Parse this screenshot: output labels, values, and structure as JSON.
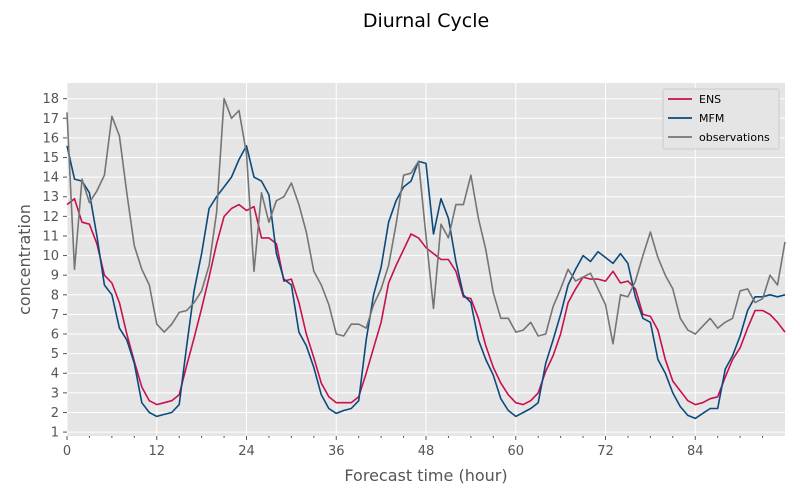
{
  "chart_data": {
    "type": "line",
    "title": "Diurnal Cycle",
    "xlabel": "Forecast time (hour)",
    "ylabel": "concentration",
    "xlim": [
      0,
      96
    ],
    "ylim": [
      0.8,
      18.8
    ],
    "xticks": [
      0,
      12,
      24,
      36,
      48,
      60,
      72,
      84
    ],
    "yticks": [
      1,
      2,
      3,
      4,
      5,
      6,
      7,
      8,
      9,
      10,
      11,
      12,
      13,
      14,
      15,
      16,
      17,
      18
    ],
    "grid": true,
    "legend_position": "top-right",
    "x": [
      0,
      1,
      2,
      3,
      4,
      5,
      6,
      7,
      8,
      9,
      10,
      11,
      12,
      13,
      14,
      15,
      16,
      17,
      18,
      19,
      20,
      21,
      22,
      23,
      24,
      25,
      26,
      27,
      28,
      29,
      30,
      31,
      32,
      33,
      34,
      35,
      36,
      37,
      38,
      39,
      40,
      41,
      42,
      43,
      44,
      45,
      46,
      47,
      48,
      49,
      50,
      51,
      52,
      53,
      54,
      55,
      56,
      57,
      58,
      59,
      60,
      61,
      62,
      63,
      64,
      65,
      66,
      67,
      68,
      69,
      70,
      71,
      72,
      73,
      74,
      75,
      76,
      77,
      78,
      79,
      80,
      81,
      82,
      83,
      84,
      85,
      86,
      87,
      88,
      89,
      90,
      91,
      92,
      93,
      94,
      95,
      96
    ],
    "series": [
      {
        "name": "ENS",
        "color": "#c8104f",
        "values": [
          12.6,
          12.9,
          11.7,
          11.6,
          10.6,
          9.0,
          8.6,
          7.6,
          6.0,
          4.6,
          3.3,
          2.6,
          2.4,
          2.5,
          2.6,
          2.9,
          4.4,
          5.8,
          7.3,
          8.9,
          10.6,
          12.0,
          12.4,
          12.6,
          12.3,
          12.5,
          10.9,
          10.9,
          10.6,
          8.7,
          8.8,
          7.6,
          6.0,
          4.8,
          3.5,
          2.8,
          2.5,
          2.5,
          2.5,
          2.8,
          4.0,
          5.3,
          6.6,
          8.6,
          9.5,
          10.3,
          11.1,
          10.9,
          10.4,
          10.1,
          9.8,
          9.8,
          9.2,
          7.9,
          7.8,
          6.8,
          5.4,
          4.3,
          3.5,
          2.9,
          2.5,
          2.4,
          2.6,
          3.0,
          4.1,
          4.9,
          6.0,
          7.6,
          8.3,
          8.9,
          8.8,
          8.8,
          8.7,
          9.2,
          8.6,
          8.7,
          8.3,
          7.0,
          6.9,
          6.2,
          4.7,
          3.6,
          3.1,
          2.6,
          2.4,
          2.5,
          2.7,
          2.8,
          3.8,
          4.7,
          5.3,
          6.3,
          7.2,
          7.2,
          7.0,
          6.6,
          6.1
        ]
      },
      {
        "name": "MFM",
        "color": "#0b4a7d",
        "values": [
          15.6,
          13.9,
          13.8,
          13.2,
          11.0,
          8.5,
          8.0,
          6.3,
          5.7,
          4.5,
          2.5,
          2.0,
          1.8,
          1.9,
          2.0,
          2.4,
          5.4,
          8.2,
          10.1,
          12.4,
          13.0,
          13.5,
          14.0,
          14.9,
          15.6,
          14.0,
          13.8,
          13.1,
          10.1,
          8.8,
          8.5,
          6.1,
          5.4,
          4.3,
          2.9,
          2.2,
          1.95,
          2.1,
          2.2,
          2.6,
          5.7,
          8.0,
          9.4,
          11.7,
          12.8,
          13.5,
          13.8,
          14.8,
          14.7,
          11.1,
          12.9,
          11.9,
          9.7,
          8.0,
          7.6,
          5.7,
          4.7,
          3.9,
          2.7,
          2.1,
          1.8,
          2.0,
          2.2,
          2.5,
          4.5,
          5.7,
          7.0,
          8.5,
          9.3,
          10.0,
          9.7,
          10.2,
          9.9,
          9.6,
          10.1,
          9.6,
          7.9,
          6.8,
          6.6,
          4.7,
          4.0,
          3.0,
          2.3,
          1.85,
          1.7,
          1.95,
          2.2,
          2.2,
          4.2,
          4.9,
          5.9,
          7.2,
          7.9,
          7.9,
          8.0,
          7.9,
          8.0
        ]
      },
      {
        "name": "observations",
        "color": "#757575",
        "values": [
          17.3,
          9.3,
          13.9,
          12.7,
          13.3,
          14.1,
          17.1,
          16.1,
          13.2,
          10.5,
          9.3,
          8.5,
          6.5,
          6.1,
          6.5,
          7.1,
          7.2,
          7.6,
          8.2,
          9.5,
          12.2,
          18.0,
          17.0,
          17.4,
          15.2,
          9.2,
          13.2,
          11.7,
          12.8,
          13.0,
          13.7,
          12.6,
          11.2,
          9.2,
          8.5,
          7.5,
          6.0,
          5.9,
          6.5,
          6.5,
          6.3,
          7.5,
          8.3,
          9.5,
          11.6,
          14.1,
          14.2,
          14.8,
          11.0,
          7.3,
          11.6,
          10.9,
          12.6,
          12.6,
          14.1,
          11.9,
          10.3,
          8.1,
          6.8,
          6.8,
          6.1,
          6.2,
          6.6,
          5.9,
          6.0,
          7.4,
          8.3,
          9.3,
          8.7,
          8.9,
          9.1,
          8.3,
          7.5,
          5.5,
          8.0,
          7.9,
          8.7,
          10.0,
          11.2,
          9.9,
          9.0,
          8.3,
          6.8,
          6.2,
          6.0,
          6.4,
          6.8,
          6.3,
          6.6,
          6.8,
          8.2,
          8.3,
          7.6,
          7.8,
          9.0,
          8.5,
          10.7
        ]
      }
    ]
  }
}
